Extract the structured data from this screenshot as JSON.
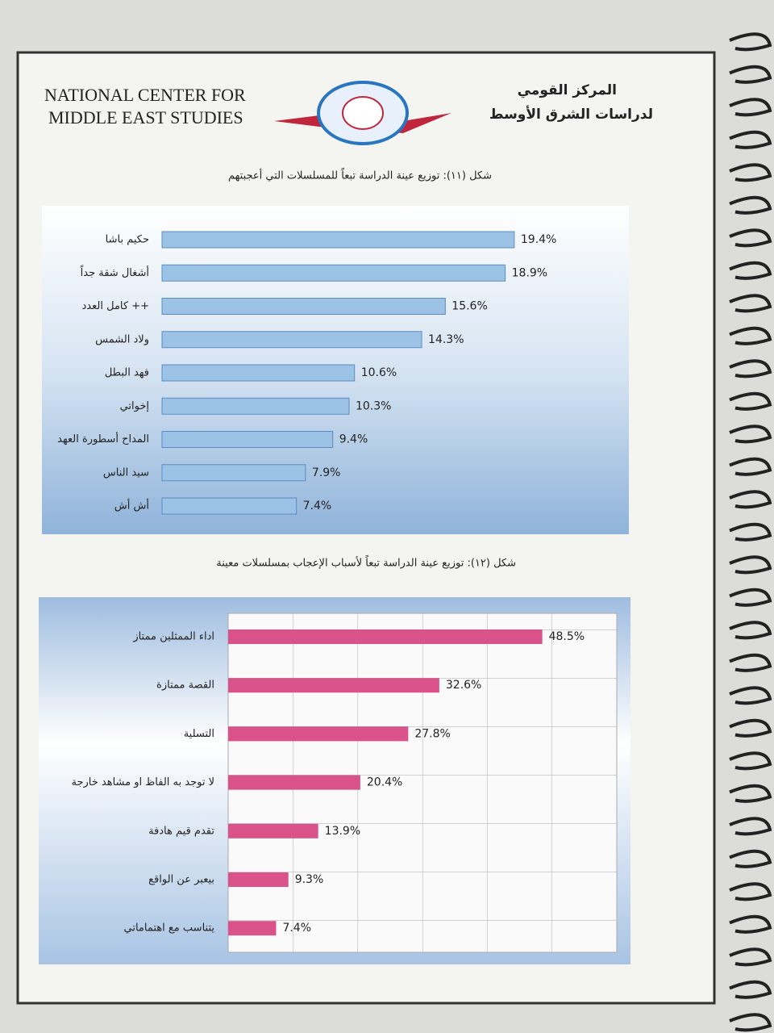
{
  "header": {
    "english_line_1": "NATIONAL CENTER FOR",
    "english_line_2": "MIDDLE EAST STUDIES",
    "arabic_line_1": "المركز القومي",
    "arabic_line_2": "لدراسات الشرق الأوسط"
  },
  "chart_data": [
    {
      "type": "bar",
      "orientation": "horizontal",
      "title": "شكل (١١): توزيع عينة الدراسة تبعاً للمسلسلات التي أعجبتهم",
      "categories": [
        "حكيم باشا",
        "أشغال شقة جداً",
        "كامل العدد ++",
        "ولاد الشمس",
        "فهد البطل",
        "إخواتي",
        "المداح أسطورة العهد",
        "سيد الناس",
        "أش أش"
      ],
      "values": [
        19.4,
        18.9,
        15.6,
        14.3,
        10.6,
        10.3,
        9.4,
        7.9,
        7.4
      ],
      "value_labels": [
        "19.4%",
        "18.9%",
        "15.6%",
        "14.3%",
        "10.6%",
        "10.3%",
        "9.4%",
        "7.9%",
        "7.4%"
      ],
      "color": "#9cc3e6",
      "xlim": [
        0,
        25
      ]
    },
    {
      "type": "bar",
      "orientation": "horizontal",
      "title": "شكل (١٢): توزيع عينة الدراسة تبعاً لأسباب الإعجاب بمسلسلات معينة",
      "categories": [
        "اداء الممثلين ممتاز",
        "القصة ممتازة",
        "التسلية",
        "لا توجد به الفاظ او مشاهد خارجة",
        "تقدم قيم هادفة",
        "بيعبر عن الواقع",
        "يتناسب مع اهتماماتي"
      ],
      "values": [
        48.5,
        32.6,
        27.8,
        20.4,
        13.9,
        9.3,
        7.4
      ],
      "value_labels": [
        "48.5%",
        "32.6%",
        "27.8%",
        "20.4%",
        "13.9%",
        "9.3%",
        "7.4%"
      ],
      "color": "#d9538a",
      "xlim": [
        0,
        60
      ]
    }
  ]
}
